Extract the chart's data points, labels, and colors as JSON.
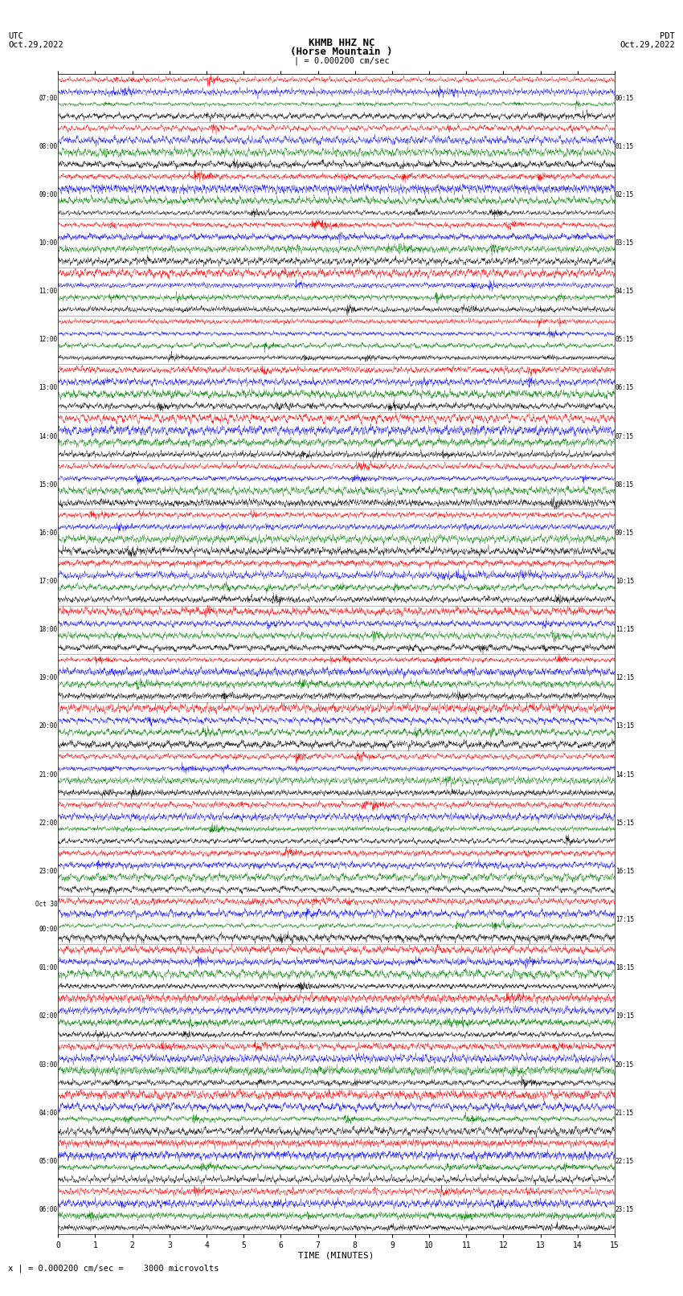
{
  "title_line1": "KHMB HHZ NC",
  "title_line2": "(Horse Mountain )",
  "scale_label": "| = 0.000200 cm/sec",
  "utc_label": "UTC",
  "date_left": "Oct.29,2022",
  "date_right": "Oct.29,2022",
  "pdt_label": "PDT",
  "xlabel": "TIME (MINUTES)",
  "footer": "x | = 0.000200 cm/sec =    3000 microvolts",
  "left_times": [
    "07:00",
    "08:00",
    "09:00",
    "10:00",
    "11:00",
    "12:00",
    "13:00",
    "14:00",
    "15:00",
    "16:00",
    "17:00",
    "18:00",
    "19:00",
    "20:00",
    "21:00",
    "22:00",
    "23:00",
    "Oct 30\n00:00",
    "01:00",
    "02:00",
    "03:00",
    "04:00",
    "05:00",
    "06:00"
  ],
  "right_times": [
    "00:15",
    "01:15",
    "02:15",
    "03:15",
    "04:15",
    "05:15",
    "06:15",
    "07:15",
    "08:15",
    "09:15",
    "10:15",
    "11:15",
    "12:15",
    "13:15",
    "14:15",
    "15:15",
    "16:15",
    "17:15",
    "18:15",
    "19:15",
    "20:15",
    "21:15",
    "22:15",
    "23:15"
  ],
  "num_traces": 24,
  "sub_traces_per_hour": 4,
  "minutes_per_trace": 15,
  "x_ticks": [
    0,
    1,
    2,
    3,
    4,
    5,
    6,
    7,
    8,
    9,
    10,
    11,
    12,
    13,
    14,
    15
  ],
  "colors": [
    "red",
    "blue",
    "green",
    "black"
  ],
  "bg_color": "white",
  "fig_width": 8.5,
  "fig_height": 16.13,
  "dpi": 100,
  "trace_amplitude": 0.55,
  "noise_seed": 42
}
